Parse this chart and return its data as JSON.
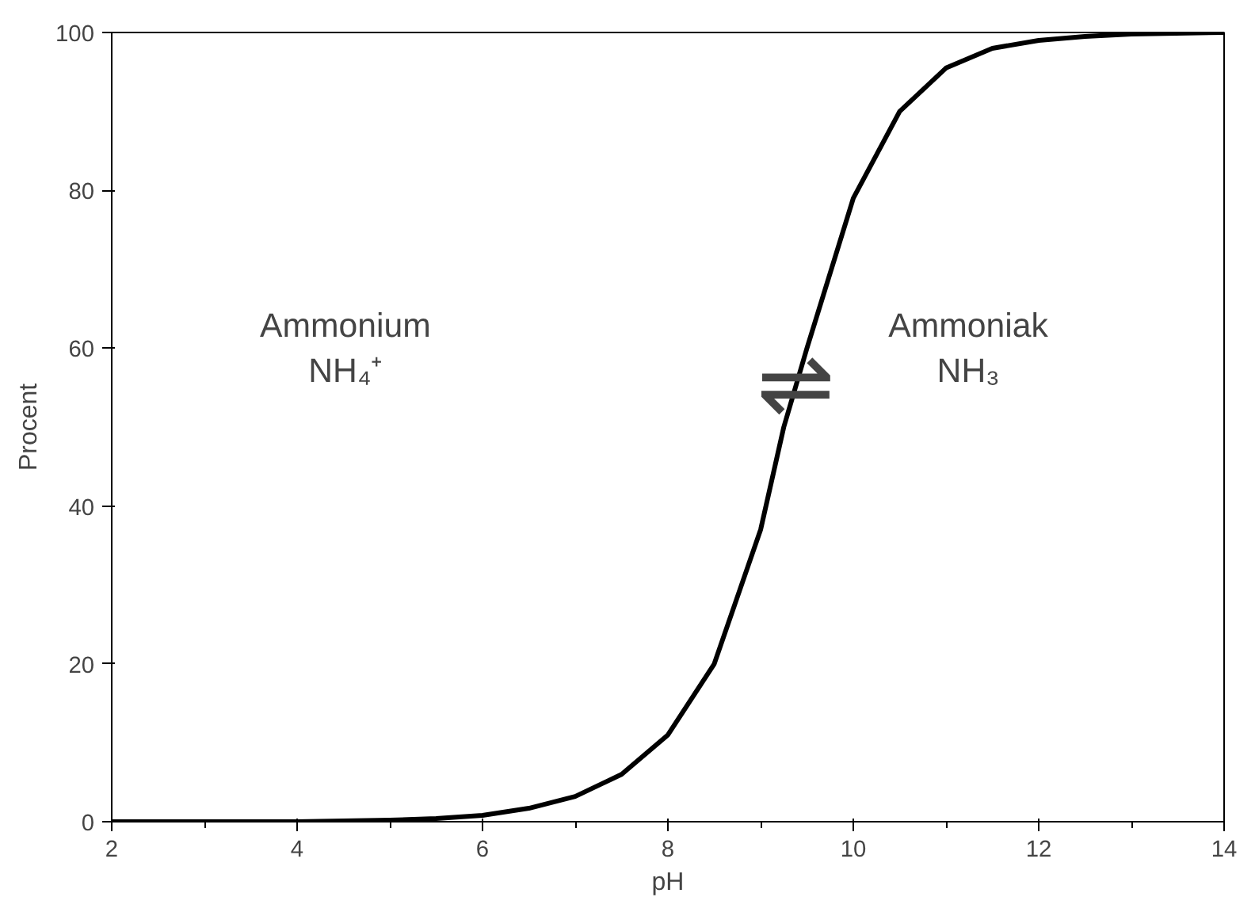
{
  "chart_data": {
    "type": "line",
    "xlabel": "pH",
    "ylabel": "Procent",
    "x": [
      2,
      3,
      4,
      5,
      5.5,
      6,
      6.5,
      7,
      7.5,
      8,
      8.5,
      9,
      9.25,
      9.5,
      10,
      10.5,
      11,
      11.5,
      12,
      12.5,
      13,
      14
    ],
    "series": [
      {
        "color": "#000000",
        "values": [
          0,
          0,
          0,
          0.2,
          0.4,
          0.8,
          1.7,
          3.2,
          6,
          11,
          20,
          37,
          50,
          60,
          79,
          90,
          95.5,
          98,
          99,
          99.5,
          99.8,
          100
        ]
      }
    ],
    "xlim": [
      2,
      14
    ],
    "ylim": [
      0,
      100
    ],
    "xticks": [
      2,
      {
        "value": 3,
        "label": null
      },
      4,
      {
        "value": 5,
        "label": null
      },
      6,
      {
        "value": 7,
        "label": null
      },
      8,
      {
        "value": 9,
        "label": null
      },
      10,
      {
        "value": 11,
        "label": null
      },
      12,
      {
        "value": 13,
        "label": null
      },
      14
    ],
    "yticks": [
      0,
      20,
      40,
      60,
      80,
      100
    ],
    "grid": false,
    "marker": "none",
    "line_style": "solid",
    "annotations": [
      "Ammonium\nNH₄⁺",
      "⇌",
      "Ammoniak\nNH₃"
    ]
  }
}
